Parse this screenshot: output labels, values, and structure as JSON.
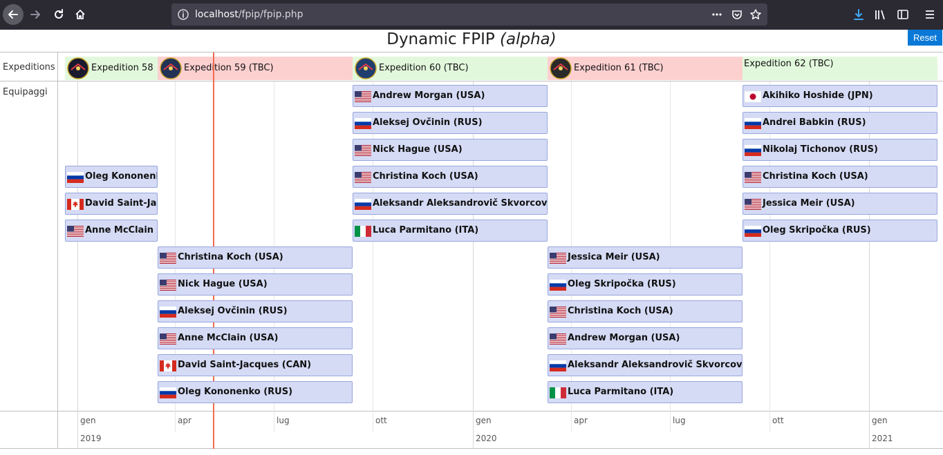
{
  "browser": {
    "url_host": "localhost",
    "url_path": "/fpip/fpip.php"
  },
  "page": {
    "title_main": "Dynamic FPIP",
    "title_italic": "(alpha)",
    "reset_label": "Reset"
  },
  "timeline": {
    "group_labels": {
      "expeditions": "Expeditions",
      "crew": "Equipaggi"
    },
    "months": [
      "gen",
      "apr",
      "lug",
      "ott",
      "gen",
      "apr",
      "lug",
      "ott",
      "gen"
    ],
    "years": [
      "2019",
      "2020",
      "2021"
    ]
  },
  "expeditions": [
    {
      "name": "Expedition 58",
      "status": "green",
      "patch_color": "#1a1a2e"
    },
    {
      "name": "Expedition 59 (TBC)",
      "status": "red",
      "patch_color": "#223355"
    },
    {
      "name": "Expedition 60 (TBC)",
      "status": "green",
      "patch_color": "#1f3f6e"
    },
    {
      "name": "Expedition 61 (TBC)",
      "status": "red",
      "patch_color": "#2a2a2a"
    },
    {
      "name": "Expedition 62 (TBC)",
      "status": "green",
      "patch_color": ""
    }
  ],
  "crew": [
    {
      "name": "Oleg Kononenko (RUS)",
      "flag": "RUS"
    },
    {
      "name": "David Saint-Jacques (CAN)",
      "flag": "CAN"
    },
    {
      "name": "Anne McClain (USA)",
      "flag": "USA"
    },
    {
      "name": "Christina Koch (USA)",
      "flag": "USA"
    },
    {
      "name": "Nick Hague (USA)",
      "flag": "USA"
    },
    {
      "name": "Aleksej Ovčinin (RUS)",
      "flag": "RUS"
    },
    {
      "name": "Anne McClain (USA)",
      "flag": "USA"
    },
    {
      "name": "David Saint-Jacques (CAN)",
      "flag": "CAN"
    },
    {
      "name": "Oleg Kononenko (RUS)",
      "flag": "RUS"
    },
    {
      "name": "Andrew Morgan (USA)",
      "flag": "USA"
    },
    {
      "name": "Aleksej Ovčinin (RUS)",
      "flag": "RUS"
    },
    {
      "name": "Nick Hague (USA)",
      "flag": "USA"
    },
    {
      "name": "Christina Koch (USA)",
      "flag": "USA"
    },
    {
      "name": "Aleksandr Aleksandrovič Skvorcov (RUS)",
      "flag": "RUS"
    },
    {
      "name": "Luca Parmitano (ITA)",
      "flag": "ITA"
    },
    {
      "name": "Jessica Meir (USA)",
      "flag": "USA"
    },
    {
      "name": "Oleg Skripočka (RUS)",
      "flag": "RUS"
    },
    {
      "name": "Christina Koch (USA)",
      "flag": "USA"
    },
    {
      "name": "Andrew Morgan (USA)",
      "flag": "USA"
    },
    {
      "name": "Aleksandr Aleksandrovič Skvorcov (RUS)",
      "flag": "RUS"
    },
    {
      "name": "Luca Parmitano (ITA)",
      "flag": "ITA"
    },
    {
      "name": "Akihiko Hoshide (JPN)",
      "flag": "JPN"
    },
    {
      "name": "Andrei Babkin (RUS)",
      "flag": "RUS"
    },
    {
      "name": "Nikolaj Tichonov (RUS)",
      "flag": "RUS"
    },
    {
      "name": "Christina Koch (USA)",
      "flag": "USA"
    },
    {
      "name": "Jessica Meir (USA)",
      "flag": "USA"
    },
    {
      "name": "Oleg Skripočka (RUS)",
      "flag": "RUS"
    }
  ],
  "icons": {
    "back": "back-arrow-icon",
    "forward": "forward-arrow-icon",
    "reload": "reload-icon",
    "home": "home-icon",
    "info": "info-icon",
    "more": "more-dots-icon",
    "pocket": "pocket-icon",
    "bookmark": "star-icon",
    "download": "download-icon",
    "library": "library-icon",
    "sidebar": "sidebar-icon",
    "menu": "hamburger-menu-icon"
  }
}
